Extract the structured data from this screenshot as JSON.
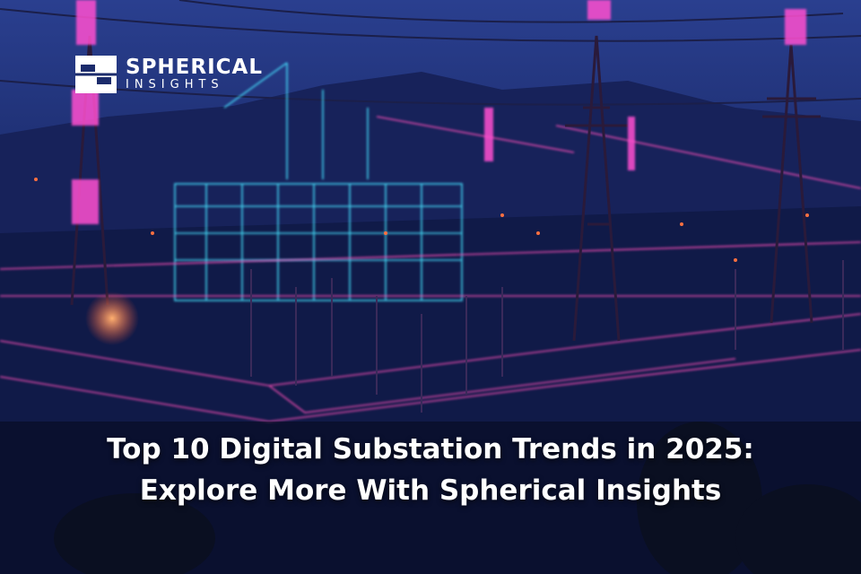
{
  "logo": {
    "name": "SPHERICAL",
    "tagline": "INSIGHTS"
  },
  "headline": {
    "lines": [
      "Top 10 Digital Substation Trends in 2025:",
      "Explore More With Spherical Insights"
    ]
  }
}
